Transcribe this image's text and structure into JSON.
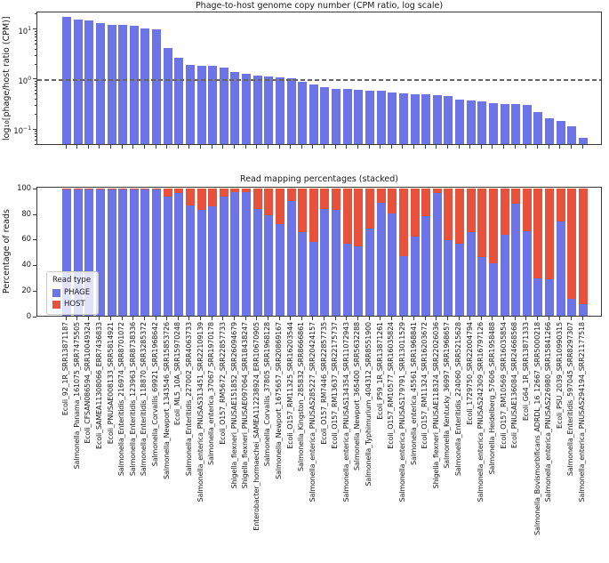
{
  "chart_data": [
    {
      "type": "bar",
      "title": "Phage-to-host genome copy number (CPM ratio, log scale)",
      "ylabel": "log10[phage/host ratio (CPM)]",
      "ylabel_parts": {
        "prefix": "log",
        "sub": "10",
        "rest": "[phage/host ratio (CPM)]"
      },
      "xlabel": "",
      "yscale": "log",
      "ylim": [
        0.048,
        22.4
      ],
      "yticks": [
        {
          "base": "10",
          "exp": "1",
          "value": 10
        },
        {
          "base": "10",
          "exp": "0",
          "value": 1
        },
        {
          "base": "10",
          "exp": "−1",
          "value": 0.1
        }
      ],
      "reference_line": {
        "value": 1,
        "style": "dashed",
        "color": "#666666"
      },
      "bar_color": "#6c74e8",
      "grid": false,
      "legend_position": "none",
      "categories": [
        "Ecoli_92_1R_SRR13871187",
        "Salmonella_Panama_161075_SRR7475505",
        "Ecoli_CFSAN086594_SRR10049324",
        "Ecoli_SAMEA11308066_ERR7436833",
        "Ecoli_PNUSAE008133_SRR5814921",
        "Salmonella_Enteritidis_216974_SRR8701072",
        "Salmonella_Enteritidis_123963_SRR8738336",
        "Salmonella_Enteritidis_118870_SRR3285372",
        "Salmonella_Corvallis_69921_SRR1968642",
        "Salmonella_Newport_1343546_SRR15853726",
        "Ecoli_ML5_10A_SRR15970248",
        "Salmonella_Enteritidis_227002_SRR4063733",
        "Salmonella_enterica_PNUSAS313451_SRR22109139",
        "Salmonella_enterica_37067_SRR1970178",
        "Ecoli_O157_RM5672_SRR22857733",
        "Shigella_flexneri_PNUSAE151852_SRR26094679",
        "Shigella_flexneri_PNUSAE097064_SRR18438247",
        "Enterobacter_hormaechei_SAMEA112238924_ERR10670905",
        "Salmonella_Corvallis_37805_SRR1968128",
        "Salmonella_Newport_1675657_SRR20869167",
        "Ecoli_O157_RM11325_SRR16203544",
        "Salmonella_Kingston_285832_SRR8666861",
        "Salmonella_enterica_PNUSAS285227_SRR20424157",
        "Ecoli_O157_RM7446_SRR22857735",
        "Ecoli_O157_RM13637_SRR22175737",
        "Salmonella_enterica_PNUSAS134354_SRR11072943",
        "Salmonella_Newport_365400_SRR5632288",
        "Salmonella_Typhimurium_404312_SRR8551900",
        "Ecoli_P59_1R_SRR13871261",
        "Ecoli_O157_RM10577_SRR16035824",
        "Salmonella_enterica_PNUSAS179791_SRR13011529",
        "Salmonella_enterica_45561_SRR1968841",
        "Ecoli_O157_RM11324_SRR16203672",
        "Shigella_flexneri_PNUSAE118324_SRR22026036",
        "Salmonella_Kentucky_36997_SRR1968657",
        "Salmonella_Enteritidis_224060_SRR5215628",
        "Ecoli_1729750_SRR22004794",
        "Salmonella_enterica_PNUSAS242309_SRR16797126",
        "Salmonella_Heidelberg_57606_SRR1958488",
        "Ecoli_O157_RM10569_SRR16035854",
        "Ecoli_PNUSAE136084_SRR24668568",
        "Ecoli_G64_1R_SRR13871333",
        "Salmonella_Bovismorbificans_ADRDL_16_12667_SRR5000218",
        "Salmonella_enterica_PNUSAS226980_SRR15841266",
        "Ecoli_PSU_2039_SRR10990315",
        "Salmonella_Enteritidis_597045_SRR8297307",
        "Salmonella_enterica_PNUSAS294194_SRR21177518"
      ],
      "values": [
        16.6,
        14.9,
        14.1,
        12.6,
        11.7,
        11.6,
        11.0,
        9.9,
        9.5,
        4.0,
        2.6,
        1.85,
        1.8,
        1.78,
        1.6,
        1.35,
        1.2,
        1.13,
        1.07,
        1.03,
        0.99,
        0.85,
        0.74,
        0.67,
        0.62,
        0.6,
        0.58,
        0.57,
        0.56,
        0.51,
        0.49,
        0.48,
        0.48,
        0.45,
        0.44,
        0.37,
        0.36,
        0.34,
        0.32,
        0.31,
        0.3,
        0.29,
        0.21,
        0.155,
        0.14,
        0.107,
        0.065
      ]
    },
    {
      "type": "stacked-bar",
      "title": "Read mapping percentages (stacked)",
      "ylabel": "Percentage of reads",
      "xlabel": "",
      "ylim": [
        0,
        100
      ],
      "yticks": [
        100,
        80,
        60,
        40,
        20,
        0
      ],
      "grid": false,
      "legend": {
        "title": "Read type",
        "position": "lower left",
        "entries": [
          {
            "label": "PHAGE",
            "color": "#6c74e8"
          },
          {
            "label": "HOST",
            "color": "#e8523c"
          }
        ]
      },
      "categories": [
        "Ecoli_92_1R_SRR13871187",
        "Salmonella_Panama_161075_SRR7475505",
        "Ecoli_CFSAN086594_SRR10049324",
        "Ecoli_SAMEA11308066_ERR7436833",
        "Ecoli_PNUSAE008133_SRR5814921",
        "Salmonella_Enteritidis_216974_SRR8701072",
        "Salmonella_Enteritidis_123963_SRR8738336",
        "Salmonella_Enteritidis_118870_SRR3285372",
        "Salmonella_Corvallis_69921_SRR1968642",
        "Salmonella_Newport_1343546_SRR15853726",
        "Ecoli_ML5_10A_SRR15970248",
        "Salmonella_Enteritidis_227002_SRR4063733",
        "Salmonella_enterica_PNUSAS313451_SRR22109139",
        "Salmonella_enterica_37067_SRR1970178",
        "Ecoli_O157_RM5672_SRR22857733",
        "Shigella_flexneri_PNUSAE151852_SRR26094679",
        "Shigella_flexneri_PNUSAE097064_SRR18438247",
        "Enterobacter_hormaechei_SAMEA112238924_ERR10670905",
        "Salmonella_Corvallis_37805_SRR1968128",
        "Salmonella_Newport_1675657_SRR20869167",
        "Ecoli_O157_RM11325_SRR16203544",
        "Salmonella_Kingston_285832_SRR8666861",
        "Salmonella_enterica_PNUSAS285227_SRR20424157",
        "Ecoli_O157_RM7446_SRR22857735",
        "Ecoli_O157_RM13637_SRR22175737",
        "Salmonella_enterica_PNUSAS134354_SRR11072943",
        "Salmonella_Newport_365400_SRR5632288",
        "Salmonella_Typhimurium_404312_SRR8551900",
        "Ecoli_P59_1R_SRR13871261",
        "Ecoli_O157_RM10577_SRR16035824",
        "Salmonella_enterica_PNUSAS179791_SRR13011529",
        "Salmonella_enterica_45561_SRR1968841",
        "Ecoli_O157_RM11324_SRR16203672",
        "Shigella_flexneri_PNUSAE118324_SRR22026036",
        "Salmonella_Kentucky_36997_SRR1968657",
        "Salmonella_Enteritidis_224060_SRR5215628",
        "Ecoli_1729750_SRR22004794",
        "Salmonella_enterica_PNUSAS242309_SRR16797126",
        "Salmonella_Heidelberg_57606_SRR1958488",
        "Ecoli_O157_RM10569_SRR16035854",
        "Ecoli_PNUSAE136084_SRR24668568",
        "Ecoli_G64_1R_SRR13871333",
        "Salmonella_Bovismorbificans_ADRDL_16_12667_SRR5000218",
        "Salmonella_enterica_PNUSAS226980_SRR15841266",
        "Ecoli_PSU_2039_SRR10990315",
        "Salmonella_Enteritidis_597045_SRR8297307",
        "Salmonella_enterica_PNUSAS294194_SRR21177518"
      ],
      "series": [
        {
          "name": "PHAGE",
          "values": [
            99.8,
            99.8,
            99.2,
            99.7,
            99.7,
            99.7,
            99.7,
            99.6,
            99.6,
            93.5,
            96.3,
            86.5,
            83.0,
            85.5,
            93.5,
            96.8,
            96.8,
            84.0,
            79.0,
            72.0,
            89.9,
            65.5,
            58.0,
            83.8,
            83.1,
            56.6,
            54.5,
            68.1,
            88.5,
            80.4,
            46.9,
            62.4,
            78.1,
            96.5,
            59.5,
            56.5,
            65.2,
            46.2,
            41.0,
            63.6,
            87.9,
            65.9,
            29.5,
            28.6,
            73.8,
            13.6,
            8.8
          ]
        },
        {
          "name": "HOST",
          "values": [
            0.2,
            0.2,
            0.8,
            0.3,
            0.3,
            0.3,
            0.3,
            0.4,
            0.4,
            6.5,
            3.7,
            13.5,
            17.0,
            14.5,
            6.5,
            3.2,
            3.2,
            16.0,
            21.0,
            28.0,
            10.1,
            34.5,
            42.0,
            16.2,
            16.9,
            43.4,
            45.5,
            31.9,
            11.5,
            19.6,
            53.1,
            37.6,
            21.9,
            3.5,
            40.5,
            43.5,
            34.8,
            53.8,
            59.0,
            36.4,
            12.1,
            34.1,
            70.5,
            71.4,
            26.2,
            86.4,
            91.2
          ]
        }
      ]
    }
  ]
}
